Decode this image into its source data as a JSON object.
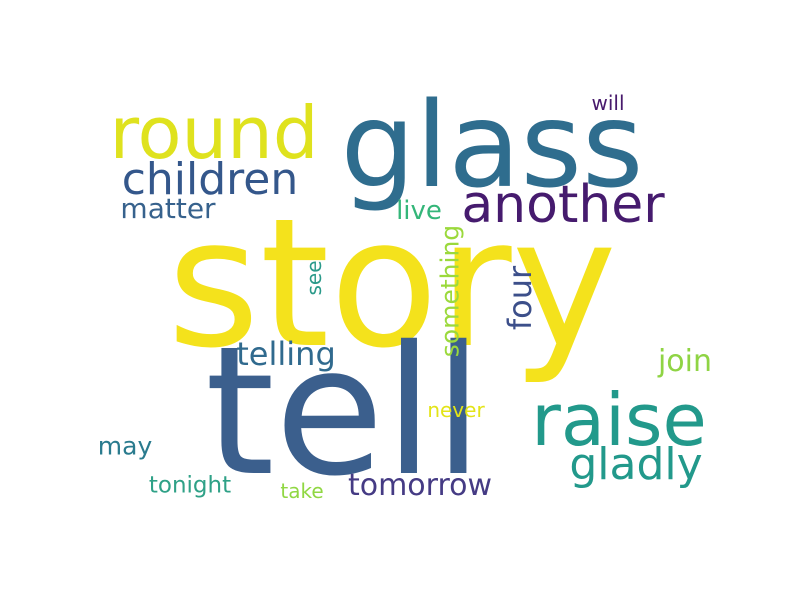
{
  "words": {
    "story": {
      "text": "story",
      "color": "#f4e21c"
    },
    "tell": {
      "text": "tell",
      "color": "#3b5f8d"
    },
    "glass": {
      "text": "glass",
      "color": "#2f6d8e"
    },
    "round": {
      "text": "round",
      "color": "#dfe21e"
    },
    "raise": {
      "text": "raise",
      "color": "#22998b"
    },
    "another": {
      "text": "another",
      "color": "#461b6e"
    },
    "children": {
      "text": "children",
      "color": "#34578b"
    },
    "gladly": {
      "text": "gladly",
      "color": "#22998b"
    },
    "telling": {
      "text": "telling",
      "color": "#306a8e"
    },
    "tomorrow": {
      "text": "tomorrow",
      "color": "#453b84"
    },
    "matter": {
      "text": "matter",
      "color": "#37628d"
    },
    "four": {
      "text": "four",
      "color": "#3c4f8a"
    },
    "join": {
      "text": "join",
      "color": "#8fd444"
    },
    "live": {
      "text": "live",
      "color": "#34b679"
    },
    "something": {
      "text": "something",
      "color": "#9bd93c"
    },
    "may": {
      "text": "may",
      "color": "#2a7b8e"
    },
    "tonight": {
      "text": "tonight",
      "color": "#2fa187"
    },
    "never": {
      "text": "never",
      "color": "#e3e418"
    },
    "take": {
      "text": "take",
      "color": "#90d743"
    },
    "will": {
      "text": "will",
      "color": "#481a6c"
    },
    "see": {
      "text": "see",
      "color": "#2a9a8a"
    }
  }
}
